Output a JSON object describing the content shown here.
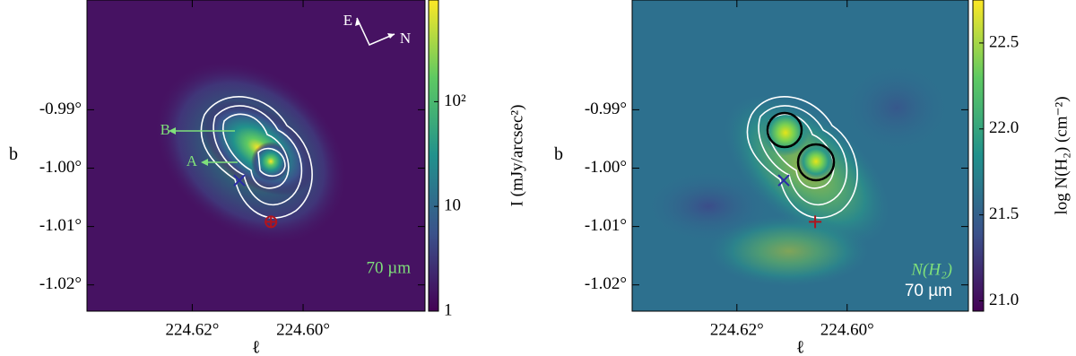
{
  "chart_data": [
    {
      "type": "image",
      "xlabel": "ℓ",
      "ylabel": "b",
      "xlim": [
        224.639,
        224.578
      ],
      "ylim": [
        -1.0245,
        -0.9712
      ],
      "xticks": [
        {
          "value": 224.62,
          "label": "224.62°"
        },
        {
          "value": 224.6,
          "label": "224.60°"
        }
      ],
      "yticks": [
        {
          "value": -0.99,
          "label": "-0.99°"
        },
        {
          "value": -1.0,
          "label": "-1.00°"
        },
        {
          "value": -1.01,
          "label": "-1.01°"
        },
        {
          "value": -1.02,
          "label": "-1.02°"
        }
      ],
      "colorbar_label": "I (mJy/arcsec²)",
      "colorbar_log": true,
      "clim": [
        1,
        935
      ],
      "cticks": [
        1,
        10,
        {
          "value": 100,
          "label": "10²"
        }
      ],
      "sources": {
        "x": [
          224.6115,
          224.6058
        ],
        "y": [
          -1.0021,
          -1.0092
        ]
      },
      "compass": [
        "E",
        "N"
      ],
      "arrow_labels": [
        "A",
        "B"
      ],
      "band": "70 µm"
    },
    {
      "type": "image",
      "xlabel": "ℓ",
      "ylabel": "b",
      "xlim": [
        224.639,
        224.578
      ],
      "ylim": [
        -1.0245,
        -0.9712
      ],
      "xticks": [
        {
          "value": 224.62,
          "label": "224.62°"
        },
        {
          "value": 224.6,
          "label": "224.60°"
        }
      ],
      "yticks": [
        {
          "value": -0.99,
          "label": "-0.99°"
        },
        {
          "value": -1.0,
          "label": "-1.00°"
        },
        {
          "value": -1.01,
          "label": "-1.01°"
        },
        {
          "value": -1.02,
          "label": "-1.02°"
        }
      ],
      "colorbar_label": "log N(H₂) (cm⁻²)",
      "colorbar_log": false,
      "clim": [
        20.94,
        22.75
      ],
      "cticks": [
        {
          "value": 21.0,
          "label": "21.0"
        },
        {
          "value": 21.5,
          "label": "21.5"
        },
        {
          "value": 22.0,
          "label": "22.0"
        },
        {
          "value": 22.5,
          "label": "22.5"
        }
      ],
      "sources": {
        "x": [
          224.6115,
          224.6058
        ],
        "y": [
          -1.0021,
          -1.0092
        ]
      },
      "map_label": "N(H₂)",
      "band": "70 µm"
    }
  ]
}
